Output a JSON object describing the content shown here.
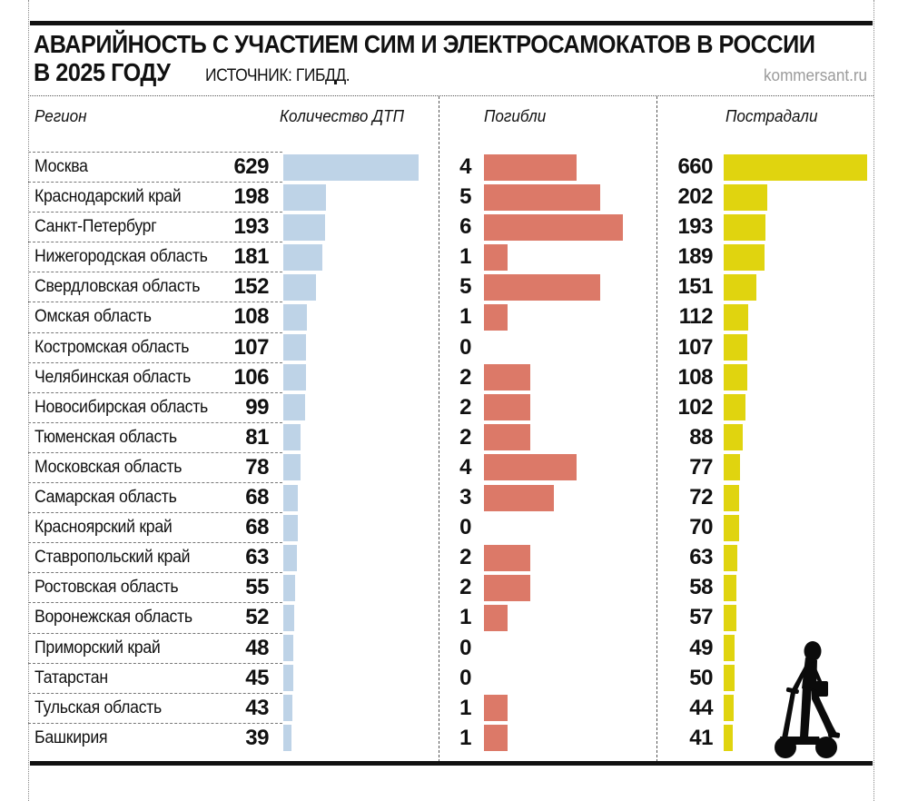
{
  "header": {
    "title_line1": "АВАРИЙНОСТЬ С УЧАСТИЕМ СИМ И ЭЛЕКТРОСАМОКАТОВ В РОССИИ",
    "title_line2": "В 2025 ГОДУ",
    "source": "ИСТОЧНИК: ГИБДД.",
    "site_credit": "kommersant.ru"
  },
  "columns": {
    "region": "Регион",
    "accidents": "Количество ДТП",
    "died": "Погибли",
    "injured": "Пострадали"
  },
  "colors": {
    "accidents_bar": "#bed3e7",
    "died_bar": "#dc7968",
    "injured_bar": "#e0d40f",
    "rule": "#111111",
    "site_credit_gray": "#9b9b9b"
  },
  "icons": {
    "scooter_rider": "scooter-rider-icon"
  },
  "chart_data": {
    "type": "bar",
    "orientation": "horizontal",
    "title": "АВАРИЙНОСТЬ С УЧАСТИЕМ СИМ И ЭЛЕКТРОСАМОКАТОВ В РОССИИ В 2025 ГОДУ",
    "source": "ИСТОЧНИК: ГИБДД.",
    "categories": [
      "Москва",
      "Краснодарский край",
      "Санкт-Петербург",
      "Нижегородская область",
      "Свердловская область",
      "Омская область",
      "Костромская область",
      "Челябинская область",
      "Новосибирская область",
      "Тюменская область",
      "Московская область",
      "Самарская область",
      "Красноярский край",
      "Ставропольский край",
      "Ростовская область",
      "Воронежская область",
      "Приморский край",
      "Татарстан",
      "Тульская область",
      "Башкирия"
    ],
    "series": [
      {
        "name": "Количество ДТП",
        "values": [
          629,
          198,
          193,
          181,
          152,
          108,
          107,
          106,
          99,
          81,
          78,
          68,
          68,
          63,
          55,
          52,
          48,
          45,
          43,
          39
        ]
      },
      {
        "name": "Погибли",
        "values": [
          4,
          5,
          6,
          1,
          5,
          1,
          0,
          2,
          2,
          2,
          4,
          3,
          0,
          2,
          2,
          1,
          0,
          0,
          1,
          1
        ]
      },
      {
        "name": "Пострадали",
        "values": [
          660,
          202,
          193,
          189,
          151,
          112,
          107,
          108,
          102,
          88,
          77,
          72,
          70,
          63,
          58,
          57,
          49,
          50,
          44,
          41
        ]
      }
    ],
    "legend_position": "column-headers",
    "grid": false
  },
  "rows": [
    {
      "region": "Москва",
      "accidents": "629",
      "died": "4",
      "injured": "660"
    },
    {
      "region": "Краснодарский край",
      "accidents": "198",
      "died": "5",
      "injured": "202"
    },
    {
      "region": "Санкт-Петербург",
      "accidents": "193",
      "died": "6",
      "injured": "193"
    },
    {
      "region": "Нижегородская область",
      "accidents": "181",
      "died": "1",
      "injured": "189"
    },
    {
      "region": "Свердловская область",
      "accidents": "152",
      "died": "5",
      "injured": "151"
    },
    {
      "region": "Омская область",
      "accidents": "108",
      "died": "1",
      "injured": "112"
    },
    {
      "region": "Костромская область",
      "accidents": "107",
      "died": "0",
      "injured": "107"
    },
    {
      "region": "Челябинская область",
      "accidents": "106",
      "died": "2",
      "injured": "108"
    },
    {
      "region": "Новосибирская область",
      "accidents": "99",
      "died": "2",
      "injured": "102"
    },
    {
      "region": "Тюменская область",
      "accidents": "81",
      "died": "2",
      "injured": "88"
    },
    {
      "region": "Московская область",
      "accidents": "78",
      "died": "4",
      "injured": "77"
    },
    {
      "region": "Самарская область",
      "accidents": "68",
      "died": "3",
      "injured": "72"
    },
    {
      "region": "Красноярский край",
      "accidents": "68",
      "died": "0",
      "injured": "70"
    },
    {
      "region": "Ставропольский край",
      "accidents": "63",
      "died": "2",
      "injured": "63"
    },
    {
      "region": "Ростовская область",
      "accidents": "55",
      "died": "2",
      "injured": "58"
    },
    {
      "region": "Воронежская область",
      "accidents": "52",
      "died": "1",
      "injured": "57"
    },
    {
      "region": "Приморский край",
      "accidents": "48",
      "died": "0",
      "injured": "49"
    },
    {
      "region": "Татарстан",
      "accidents": "45",
      "died": "0",
      "injured": "50"
    },
    {
      "region": "Тульская область",
      "accidents": "43",
      "died": "1",
      "injured": "44"
    },
    {
      "region": "Башкирия",
      "accidents": "39",
      "died": "1",
      "injured": "41"
    }
  ]
}
